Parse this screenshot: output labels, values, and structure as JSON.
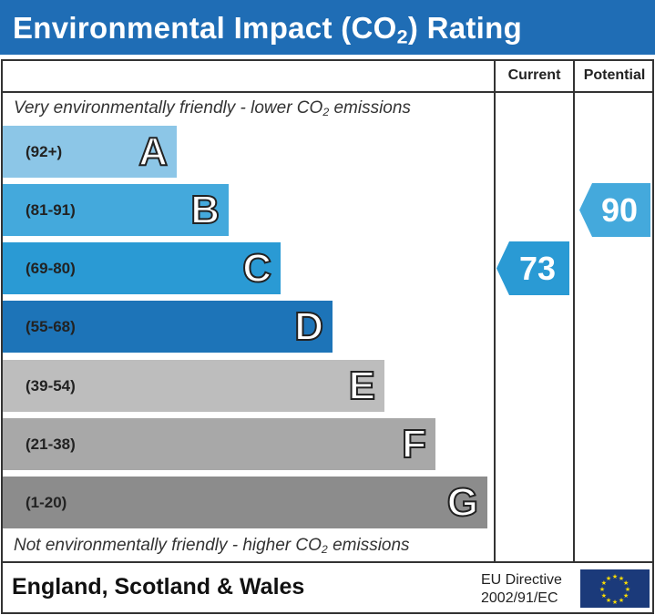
{
  "header": {
    "title_pre": "Environmental Impact (CO",
    "title_sub": "2",
    "title_post": ") Rating"
  },
  "columns": {
    "current": "Current",
    "potential": "Potential"
  },
  "notes": {
    "top_pre": "Very environmentally friendly - lower CO",
    "top_post": " emissions",
    "bottom_pre": "Not environmentally friendly - higher CO",
    "bottom_post": " emissions",
    "sub": "2"
  },
  "chart_data": {
    "type": "bar",
    "bands": [
      {
        "letter": "A",
        "range": "(92+)",
        "color": "#8cc6e7"
      },
      {
        "letter": "B",
        "range": "(81-91)",
        "color": "#44a9dc"
      },
      {
        "letter": "C",
        "range": "(69-80)",
        "color": "#2a9ad4"
      },
      {
        "letter": "D",
        "range": "(55-68)",
        "color": "#1d74b8"
      },
      {
        "letter": "E",
        "range": "(39-54)",
        "color": "#bdbdbd"
      },
      {
        "letter": "F",
        "range": "(21-38)",
        "color": "#a8a8a8"
      },
      {
        "letter": "G",
        "range": "(1-20)",
        "color": "#8c8c8c"
      }
    ],
    "current": {
      "value": "73",
      "band": "C",
      "color": "#2a9ad4"
    },
    "potential": {
      "value": "90",
      "band": "B",
      "color": "#44a9dc"
    }
  },
  "footer": {
    "region": "England, Scotland & Wales",
    "directive_line1": "EU Directive",
    "directive_line2": "2002/91/EC"
  },
  "colors": {
    "title_bg": "#1f6db5",
    "flag_bg": "#1b3a7a",
    "flag_stars": "#ffdd00"
  }
}
